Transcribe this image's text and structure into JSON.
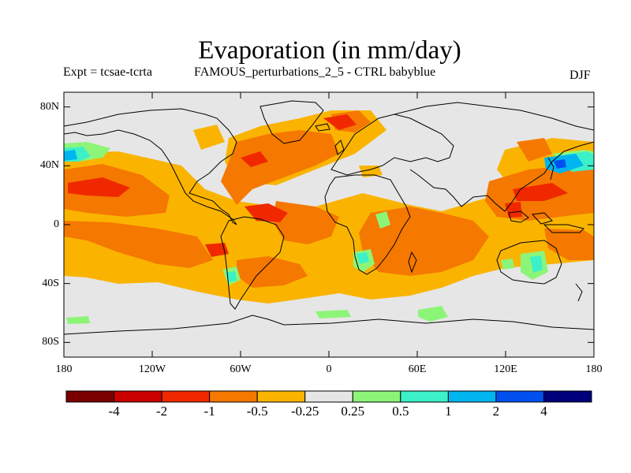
{
  "title": "Evaporation (in mm/day)",
  "subtitle_left": "Expt = tcsae-tcrta",
  "subtitle_center": "FAMOUS_perturbations_2_5 - CTRL babyblue",
  "subtitle_right": "DJF",
  "lat_ticks": [
    {
      "label": "80N",
      "value": 80
    },
    {
      "label": "40N",
      "value": 40
    },
    {
      "label": "0",
      "value": 0
    },
    {
      "label": "40S",
      "value": -40
    },
    {
      "label": "80S",
      "value": -80
    }
  ],
  "lon_ticks": [
    {
      "label": "180",
      "value": -180
    },
    {
      "label": "120W",
      "value": -120
    },
    {
      "label": "60W",
      "value": -60
    },
    {
      "label": "0",
      "value": 0
    },
    {
      "label": "60E",
      "value": 60
    },
    {
      "label": "120E",
      "value": 120
    },
    {
      "label": "180",
      "value": 180
    }
  ],
  "colorbar": {
    "colors": [
      "#7a0000",
      "#c80000",
      "#f02800",
      "#f57800",
      "#fab400",
      "#e6e6e6",
      "#8cf578",
      "#3cf0c8",
      "#00b4f0",
      "#0050f0",
      "#00007a"
    ],
    "labels": [
      "-4",
      "-2",
      "-1",
      "-0.5",
      "-0.25",
      "0.25",
      "0.5",
      "1",
      "2",
      "4"
    ]
  },
  "colors": {
    "neutral": "#e6e6e6",
    "orange": "#f57800",
    "light_orange": "#fab400",
    "red_orange": "#f02800",
    "red": "#c80000",
    "green": "#8cf578",
    "cyan": "#3cf0c8",
    "light_blue": "#00b4f0",
    "blue": "#0050f0",
    "coastline": "#000000"
  }
}
